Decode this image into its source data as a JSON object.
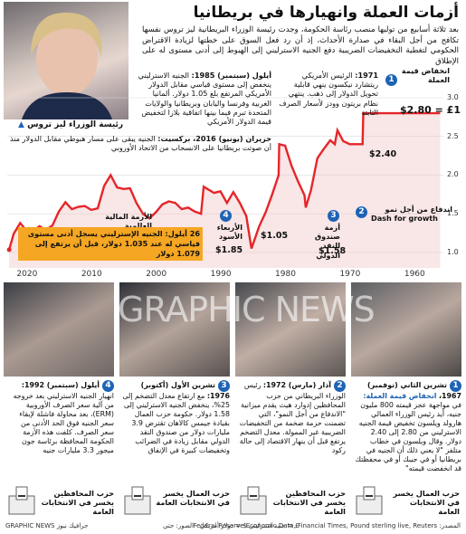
{
  "title": "أزمات العملة وانهيارها في بريطانيا",
  "intro": "بعد ثلاثة أسابيع من توليها منصب رئاسة الحكومة، وجدت رئيسة الوزراء البريطانية ليز تروس نفسها تكافح من أجل البقاء في صدارة الأحداث، إذ أن رد فعل السوق على خطتها لزيادة الاقتراض الحكومي لتغطية التخفيضات الضريبية دفع الجنيه الاسترليني إلى الهبوط إلى أدنى مستوى له على الإطلاق",
  "portrait_caption": "رئيسة الوزراء ليز تروس",
  "annotations": {
    "a1971": {
      "label": "1971:",
      "text": "الرئيس الأمريكي ريتشارد نيكسون ينهي قابلية تحويل الدولار إلى ذهب. ينتهي نظام بريتون وودز لأسعار الصرف الثابتة"
    },
    "a1985": {
      "label": "أيلول (سبتمبر) 1985:",
      "text": "الجنيه الاسترليني ينخفض إلى مستوى قياسي مقابل الدولار الأمريكي المرتفع بلغ 1.05 دولار. ألمانيا الغربية وفرنسا واليابان وبريطانيا والولايات المتحدة تبرم فيما بينها اتفاقية بلازا لتخفيض قيمة الدولار الأمريكي"
    },
    "a2016": {
      "label": "حزيران (يونيو) 2016، بركسيت:",
      "text": "الجنيه يبقى على مسار هبوطي مقابل الدولار منذ أن صوتت بريطانيا على الانسحاب من الاتحاد الأوروبي"
    },
    "devaluation": "انخفاض قيمة العملة",
    "peg": "$2.80 = £1",
    "dash": "اندفاع من أجل نمو",
    "dash_en": "Dash for growth",
    "imf": "أزمة صندوق النقد الدولي",
    "black_wed": "الأربعاء الأسود",
    "gfc": "الأزمة المالية العالمية",
    "today": "26 أيلول: الجنيه الإسترليني يسجل أدنى مستوى قياسي له عند 1.035 دولار، قبل أن يرتفع إلى 1.079 دولار"
  },
  "chart_values": {
    "v280": "$2.80",
    "v240": "$2.40",
    "v185": "$1.85",
    "v158": "$1.58",
    "v105": "$1.05"
  },
  "chart_data": {
    "type": "line",
    "x": [
      1956,
      1958,
      1960,
      1962,
      1964,
      1966,
      1967.9,
      1968,
      1970,
      1971,
      1971.9,
      1972.3,
      1973,
      1974,
      1975,
      1976,
      1976.8,
      1977,
      1978,
      1979,
      1980,
      1980.9,
      1981,
      1982,
      1983,
      1984,
      1985.2,
      1986,
      1987,
      1988,
      1989,
      1990,
      1991,
      1992.6,
      1993,
      1994,
      1995,
      1996,
      1997,
      1998,
      1999,
      2000,
      2001,
      2002,
      2003,
      2004,
      2005,
      2006,
      2007,
      2008,
      2009,
      2010,
      2011,
      2012,
      2013,
      2014,
      2015,
      2016,
      2017,
      2018,
      2019,
      2020,
      2021,
      2022,
      2022.7
    ],
    "values": [
      2.8,
      2.8,
      2.8,
      2.8,
      2.8,
      2.8,
      2.8,
      2.4,
      2.4,
      2.44,
      2.58,
      2.4,
      2.45,
      2.34,
      2.22,
      1.8,
      1.58,
      1.74,
      1.92,
      2.12,
      2.38,
      2.4,
      2.0,
      1.75,
      1.52,
      1.34,
      1.05,
      1.47,
      1.64,
      1.78,
      1.64,
      1.79,
      1.77,
      1.85,
      1.5,
      1.53,
      1.58,
      1.56,
      1.64,
      1.66,
      1.62,
      1.52,
      1.44,
      1.5,
      1.64,
      1.83,
      1.82,
      1.84,
      2.0,
      1.86,
      1.57,
      1.55,
      1.6,
      1.59,
      1.56,
      1.65,
      1.53,
      1.35,
      1.29,
      1.34,
      1.28,
      1.28,
      1.38,
      1.24,
      1.035
    ],
    "ylim": [
      0.8,
      3.0
    ],
    "yticks": [
      "1.0",
      "1.5",
      "2.0",
      "2.5",
      "3.0"
    ],
    "xticks": [
      "2020",
      "2010",
      "2000",
      "1990",
      "1980",
      "1970",
      "1960"
    ],
    "xticks_values": [
      2020,
      2010,
      2000,
      1990,
      1980,
      1970,
      1960
    ],
    "x_reversed": true,
    "color": "#e5252a"
  },
  "stories": [
    {
      "label": "تشرين الثاني (نوفمبر) 1967،",
      "head": "انخفاض قيمة العملة:",
      "text": "في مواجهة عجز قيمته 800 مليون جنيه، أيد رئيس الوزراء العمالي هارولد ويلسون تخفيض قيمة الجنيه الاسترليني من 2.80 إلى 2.40 دولار. وقال ويلسون في خطاب متلفز \"لا يعني ذلك أن الجنيه في بريطانيا أو في جيبك أو في محفظتك قد انخفضت قيمته\"",
      "ballot": "حزب العمال يخسر في الانتخابات العامة"
    },
    {
      "label": "آذار (مارس) 1972:",
      "head": "",
      "text": "رئيس الوزراء البريطاني من حزب المحافظين إدوارد هيث يقدم ميزانية \"الاندفاع من أجل النمو\"، التي تضمنت حزمة ضخمة من التخفيضات الضريبية غير الممولة. معدل التضخم يرتفع قبل أن ينهار الاقتصاد إلى حالة ركود",
      "ballot": "حزب المحافظين يخسر في الانتخابات العامة"
    },
    {
      "label": "تشرين الأول (أكتوبر) 1976:",
      "head": "",
      "text": "مع ارتفاع معدل التضخم إلى 25%، ينخفض الجنيه الاسترليني إلى 1.58 دولار. حكومة حزب العمال بقيادة جيمس كالاهان تقترض 3.9 مليارات دولار من صندوق النقد الدولي مقابل زيادة في الضرائب وتخفيضات كبيرة في الإنفاق",
      "ballot": "حزب العمال يخسر في الانتخابات العامة"
    },
    {
      "label": "أيلول (سبتمبر) 1992:",
      "head": "",
      "text": "انهيار الجنيه الاسترليني بعد خروجه من آلية سعر الصرف الأوروبية (ERM)، بعد محاولة فاشلة لإبقاء سعر الجنيه فوق الحد الأدنى من سعر الصرف. كلفت هذه الأزمة الحكومة المحافظة برئاسة جون ميجور 3.3 مليارات جنيه",
      "ballot": "حزب المحافظين يخسر في الانتخابات العامة"
    }
  ],
  "footer": {
    "sources": "المصدر: Federal Reserve Economic Data, Financial Times, Pound sterling live, Reuters",
    "note": "£ = جنيه استرليني $ = دولار أمريكي",
    "photos": "الصور: جتي",
    "credit": "GRAPHIC NEWS جرافيك نيوز"
  },
  "watermark": "GRAPHIC NEWS"
}
